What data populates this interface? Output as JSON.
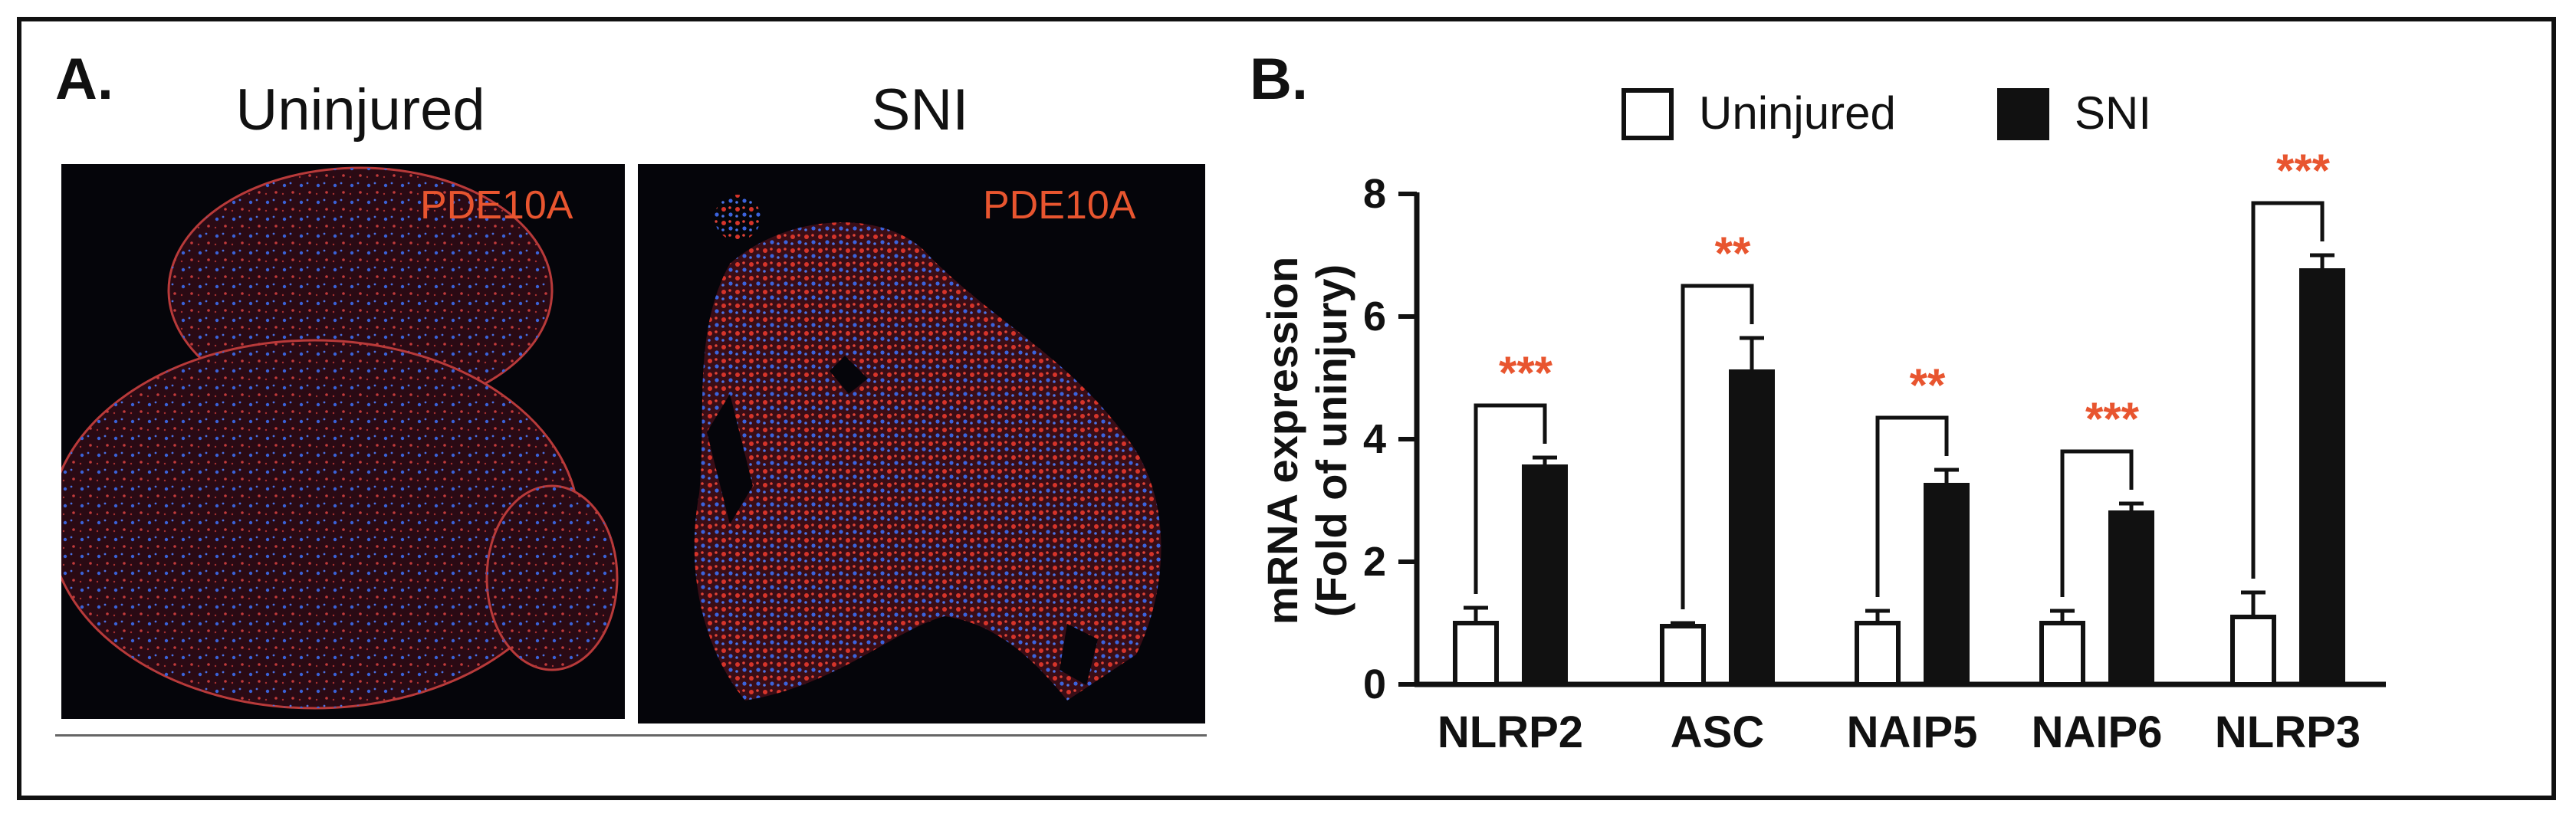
{
  "panel_a": {
    "letter": "A.",
    "left_title": "Uninjured",
    "right_title": "SNI",
    "left_stain": "PDE10A",
    "right_stain": "PDE10A",
    "stain_color": "#e8552f"
  },
  "panel_b": {
    "letter": "B."
  },
  "chart_data": {
    "type": "bar",
    "categories": [
      "NLRP2",
      "ASC",
      "NAIP5",
      "NAIP6",
      "NLRP3"
    ],
    "ylabel_line1": "mRNA expression",
    "ylabel_line2": "(Fold of uninjury)",
    "ylim": [
      0,
      8
    ],
    "yticks": [
      0,
      2,
      4,
      6,
      8
    ],
    "grid": false,
    "legend_position": "top",
    "series": [
      {
        "name": "Uninjured",
        "values": [
          1.0,
          0.95,
          1.0,
          1.0,
          1.1
        ],
        "errors": [
          0.25,
          0.05,
          0.2,
          0.2,
          0.4
        ],
        "fill": "#ffffff",
        "stroke": "#111111"
      },
      {
        "name": "SNI",
        "values": [
          3.55,
          5.1,
          3.25,
          2.8,
          6.75
        ],
        "errors": [
          0.15,
          0.55,
          0.25,
          0.15,
          0.25
        ],
        "fill": "#111111",
        "stroke": "#111111"
      }
    ],
    "significance": [
      "***",
      "**",
      "**",
      "***",
      "***"
    ],
    "significance_color": "#e8552f"
  }
}
